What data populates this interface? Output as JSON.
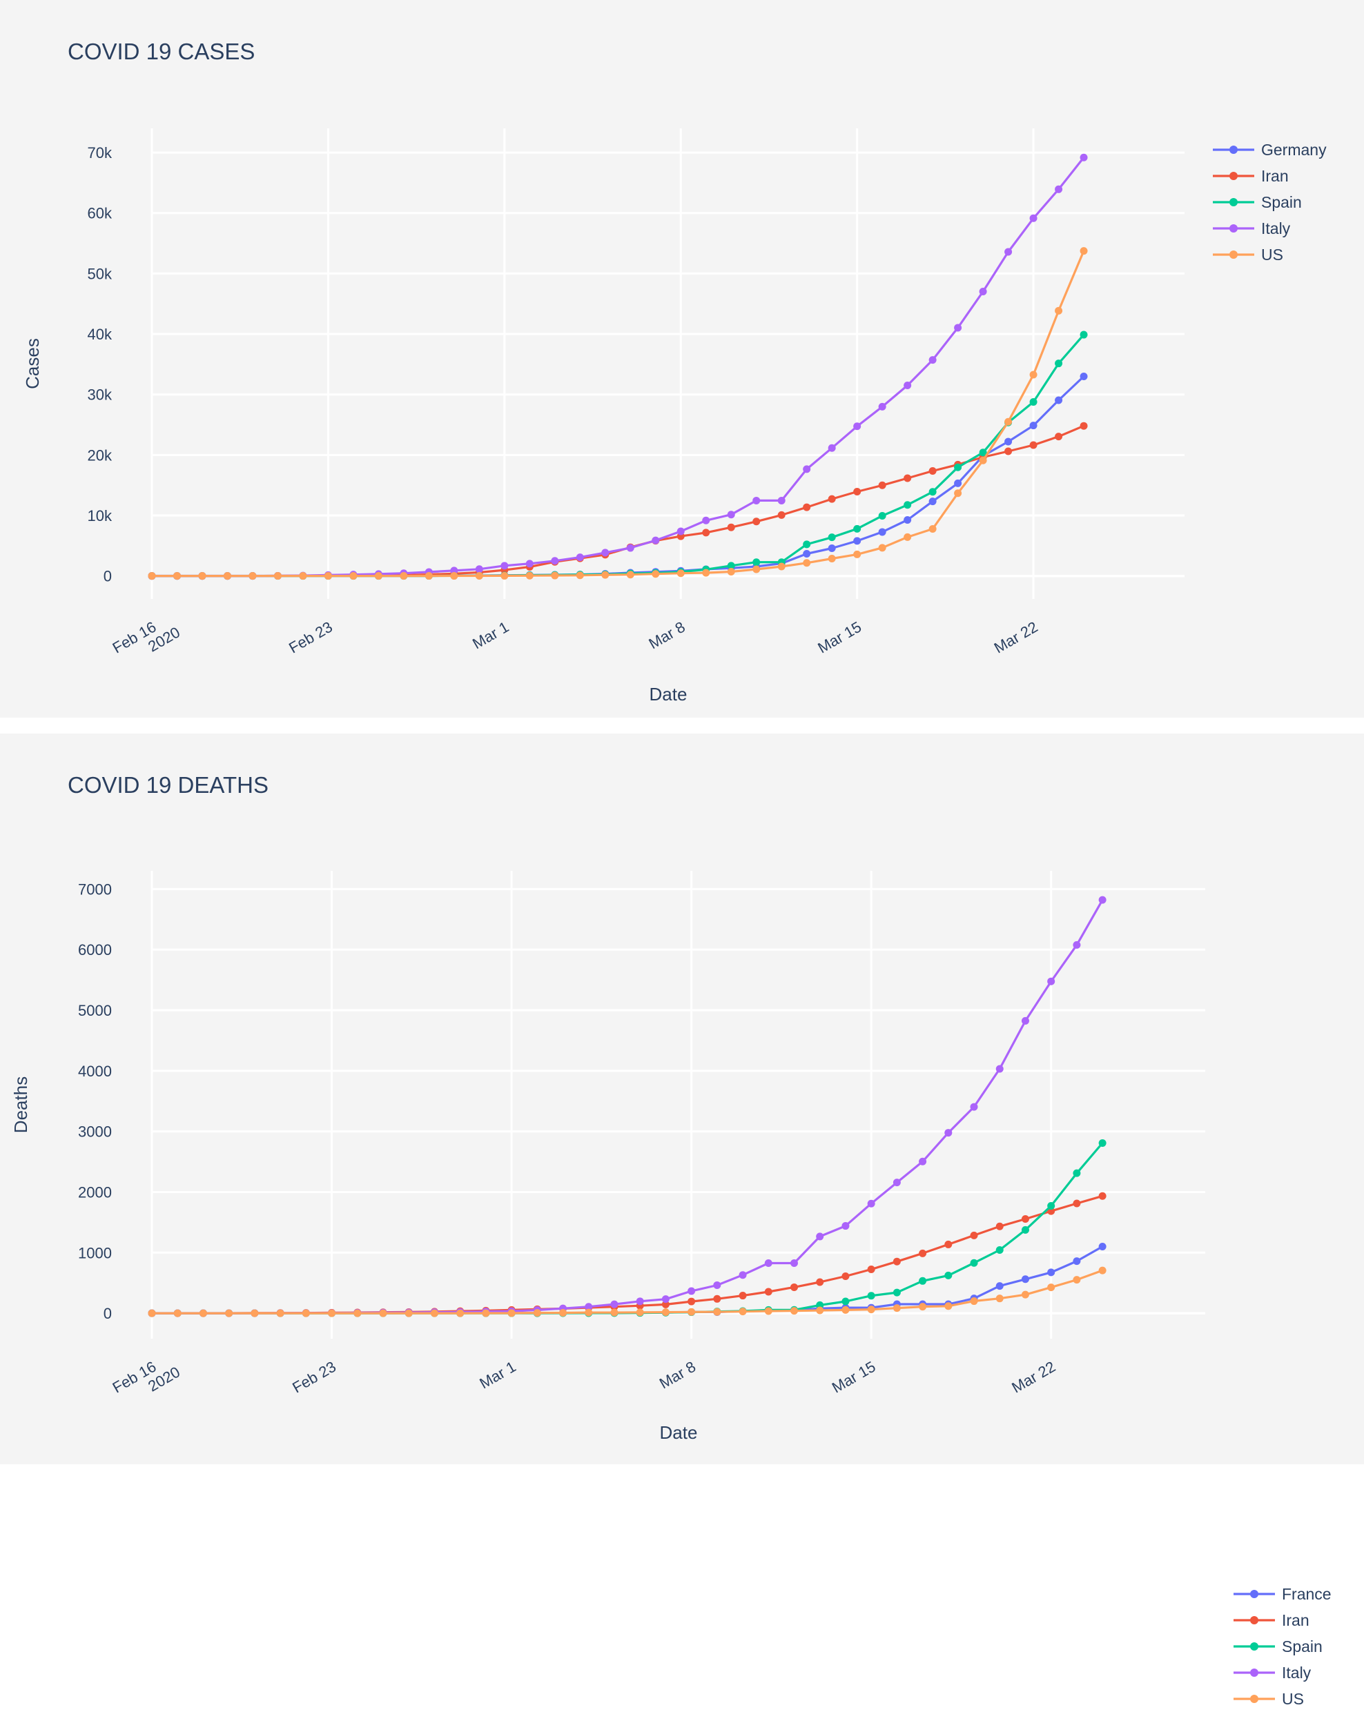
{
  "chart_data": [
    {
      "type": "line",
      "title": "COVID 19 CASES",
      "xlabel": "Date",
      "ylabel": "Cases",
      "x": [
        "2020-02-16",
        "2020-02-17",
        "2020-02-18",
        "2020-02-19",
        "2020-02-20",
        "2020-02-21",
        "2020-02-22",
        "2020-02-23",
        "2020-02-24",
        "2020-02-25",
        "2020-02-26",
        "2020-02-27",
        "2020-02-28",
        "2020-02-29",
        "2020-03-01",
        "2020-03-02",
        "2020-03-03",
        "2020-03-04",
        "2020-03-05",
        "2020-03-06",
        "2020-03-07",
        "2020-03-08",
        "2020-03-09",
        "2020-03-10",
        "2020-03-11",
        "2020-03-12",
        "2020-03-13",
        "2020-03-14",
        "2020-03-15",
        "2020-03-16",
        "2020-03-17",
        "2020-03-18",
        "2020-03-19",
        "2020-03-20",
        "2020-03-21",
        "2020-03-22",
        "2020-03-23",
        "2020-03-24"
      ],
      "x_ticks": [
        {
          "date": "2020-02-16",
          "label": "Feb 16",
          "sublabel": "2020"
        },
        {
          "date": "2020-02-23",
          "label": "Feb 23",
          "sublabel": ""
        },
        {
          "date": "2020-03-01",
          "label": "Mar 1",
          "sublabel": ""
        },
        {
          "date": "2020-03-08",
          "label": "Mar 8",
          "sublabel": ""
        },
        {
          "date": "2020-03-15",
          "label": "Mar 15",
          "sublabel": ""
        },
        {
          "date": "2020-03-22",
          "label": "Mar 22",
          "sublabel": ""
        }
      ],
      "y_ticks": [
        {
          "value": 0,
          "label": "0"
        },
        {
          "value": 10000,
          "label": "10k"
        },
        {
          "value": 20000,
          "label": "20k"
        },
        {
          "value": 30000,
          "label": "30k"
        },
        {
          "value": 40000,
          "label": "40k"
        },
        {
          "value": 50000,
          "label": "50k"
        },
        {
          "value": 60000,
          "label": "60k"
        },
        {
          "value": 70000,
          "label": "70k"
        }
      ],
      "xlim": [
        "2020-02-16",
        "2020-03-28"
      ],
      "ylim": [
        -3800,
        74000
      ],
      "grid": true,
      "legend_position": "top-right",
      "series": [
        {
          "name": "Germany",
          "color": "#636efa",
          "values": [
            16,
            16,
            16,
            16,
            16,
            16,
            16,
            16,
            16,
            16,
            21,
            26,
            53,
            66,
            117,
            150,
            188,
            240,
            349,
            534,
            684,
            847,
            1112,
            1296,
            1567,
            2078,
            3675,
            4585,
            5795,
            7272,
            9257,
            12327,
            15320,
            19848,
            22213,
            24873,
            29056,
            32986
          ]
        },
        {
          "name": "Iran",
          "color": "#ef553b",
          "values": [
            0,
            0,
            0,
            0,
            5,
            18,
            28,
            43,
            61,
            95,
            139,
            245,
            388,
            593,
            978,
            1501,
            2336,
            2922,
            3513,
            4747,
            5823,
            6566,
            7161,
            8042,
            9000,
            10075,
            11364,
            12729,
            13938,
            14991,
            16169,
            17361,
            18407,
            19644,
            20610,
            21638,
            23049,
            24811
          ]
        },
        {
          "name": "Spain",
          "color": "#00cc96",
          "values": [
            2,
            2,
            2,
            2,
            2,
            2,
            2,
            2,
            2,
            6,
            13,
            15,
            32,
            45,
            84,
            120,
            165,
            222,
            259,
            400,
            500,
            673,
            1073,
            1695,
            2277,
            2277,
            5232,
            6391,
            7798,
            9942,
            11748,
            13910,
            17963,
            20410,
            25374,
            28768,
            35136,
            39885
          ]
        },
        {
          "name": "Italy",
          "color": "#ab63fa",
          "values": [
            3,
            3,
            3,
            3,
            3,
            20,
            62,
            155,
            229,
            322,
            453,
            655,
            888,
            1128,
            1694,
            2036,
            2502,
            3089,
            3858,
            4636,
            5883,
            7375,
            9172,
            10149,
            12462,
            12462,
            17660,
            21157,
            24747,
            27980,
            31506,
            35713,
            41035,
            47021,
            53578,
            59138,
            63927,
            69176
          ]
        },
        {
          "name": "US",
          "color": "#ffa15a",
          "values": [
            15,
            15,
            15,
            15,
            15,
            15,
            15,
            15,
            15,
            15,
            15,
            16,
            16,
            24,
            30,
            53,
            73,
            104,
            174,
            222,
            337,
            451,
            519,
            711,
            1109,
            1561,
            2157,
            2870,
            3574,
            4661,
            6423,
            7783,
            13677,
            19100,
            25489,
            33276,
            43847,
            53740
          ]
        }
      ]
    },
    {
      "type": "line",
      "title": "COVID 19 DEATHS",
      "xlabel": "Date",
      "ylabel": "Deaths",
      "x": [
        "2020-02-16",
        "2020-02-17",
        "2020-02-18",
        "2020-02-19",
        "2020-02-20",
        "2020-02-21",
        "2020-02-22",
        "2020-02-23",
        "2020-02-24",
        "2020-02-25",
        "2020-02-26",
        "2020-02-27",
        "2020-02-28",
        "2020-02-29",
        "2020-03-01",
        "2020-03-02",
        "2020-03-03",
        "2020-03-04",
        "2020-03-05",
        "2020-03-06",
        "2020-03-07",
        "2020-03-08",
        "2020-03-09",
        "2020-03-10",
        "2020-03-11",
        "2020-03-12",
        "2020-03-13",
        "2020-03-14",
        "2020-03-15",
        "2020-03-16",
        "2020-03-17",
        "2020-03-18",
        "2020-03-19",
        "2020-03-20",
        "2020-03-21",
        "2020-03-22",
        "2020-03-23",
        "2020-03-24"
      ],
      "x_ticks": [
        {
          "date": "2020-02-16",
          "label": "Feb 16",
          "sublabel": "2020"
        },
        {
          "date": "2020-02-23",
          "label": "Feb 23",
          "sublabel": ""
        },
        {
          "date": "2020-03-01",
          "label": "Mar 1",
          "sublabel": ""
        },
        {
          "date": "2020-03-08",
          "label": "Mar 8",
          "sublabel": ""
        },
        {
          "date": "2020-03-15",
          "label": "Mar 15",
          "sublabel": ""
        },
        {
          "date": "2020-03-22",
          "label": "Mar 22",
          "sublabel": ""
        }
      ],
      "y_ticks": [
        {
          "value": 0,
          "label": "0"
        },
        {
          "value": 1000,
          "label": "1000"
        },
        {
          "value": 2000,
          "label": "2000"
        },
        {
          "value": 3000,
          "label": "3000"
        },
        {
          "value": 4000,
          "label": "4000"
        },
        {
          "value": 5000,
          "label": "5000"
        },
        {
          "value": 6000,
          "label": "6000"
        },
        {
          "value": 7000,
          "label": "7000"
        }
      ],
      "xlim": [
        "2020-02-16",
        "2020-03-28"
      ],
      "ylim": [
        -420,
        7300
      ],
      "grid": true,
      "legend_position": "top-right",
      "series": [
        {
          "name": "France",
          "color": "#636efa",
          "values": [
            1,
            1,
            1,
            1,
            1,
            1,
            1,
            1,
            1,
            1,
            2,
            2,
            2,
            2,
            2,
            3,
            4,
            4,
            6,
            9,
            11,
            19,
            19,
            33,
            48,
            48,
            79,
            91,
            91,
            149,
            149,
            149,
            244,
            450,
            562,
            674,
            860,
            1100
          ]
        },
        {
          "name": "Iran",
          "color": "#ef553b",
          "values": [
            0,
            0,
            0,
            0,
            2,
            4,
            5,
            8,
            12,
            16,
            19,
            26,
            34,
            43,
            54,
            66,
            77,
            92,
            107,
            124,
            145,
            194,
            237,
            291,
            354,
            429,
            514,
            611,
            724,
            853,
            988,
            1135,
            1284,
            1433,
            1556,
            1685,
            1812,
            1934
          ]
        },
        {
          "name": "Spain",
          "color": "#00cc96",
          "values": [
            0,
            0,
            0,
            0,
            0,
            0,
            0,
            0,
            0,
            0,
            0,
            0,
            0,
            0,
            0,
            0,
            1,
            2,
            3,
            5,
            10,
            17,
            28,
            35,
            54,
            55,
            133,
            195,
            289,
            342,
            533,
            623,
            830,
            1043,
            1375,
            1772,
            2311,
            2808
          ]
        },
        {
          "name": "Italy",
          "color": "#ab63fa",
          "values": [
            0,
            0,
            0,
            0,
            0,
            1,
            2,
            3,
            7,
            10,
            12,
            17,
            21,
            29,
            34,
            52,
            79,
            107,
            148,
            197,
            233,
            366,
            463,
            631,
            827,
            827,
            1266,
            1441,
            1809,
            2158,
            2503,
            2978,
            3405,
            4032,
            4825,
            5476,
            6077,
            6820
          ]
        },
        {
          "name": "US",
          "color": "#ffa15a",
          "values": [
            0,
            0,
            0,
            0,
            0,
            0,
            0,
            0,
            0,
            0,
            0,
            0,
            0,
            1,
            1,
            6,
            7,
            11,
            12,
            14,
            17,
            21,
            22,
            28,
            36,
            40,
            47,
            54,
            63,
            85,
            108,
            118,
            200,
            244,
            307,
            427,
            552,
            706
          ]
        }
      ]
    }
  ]
}
